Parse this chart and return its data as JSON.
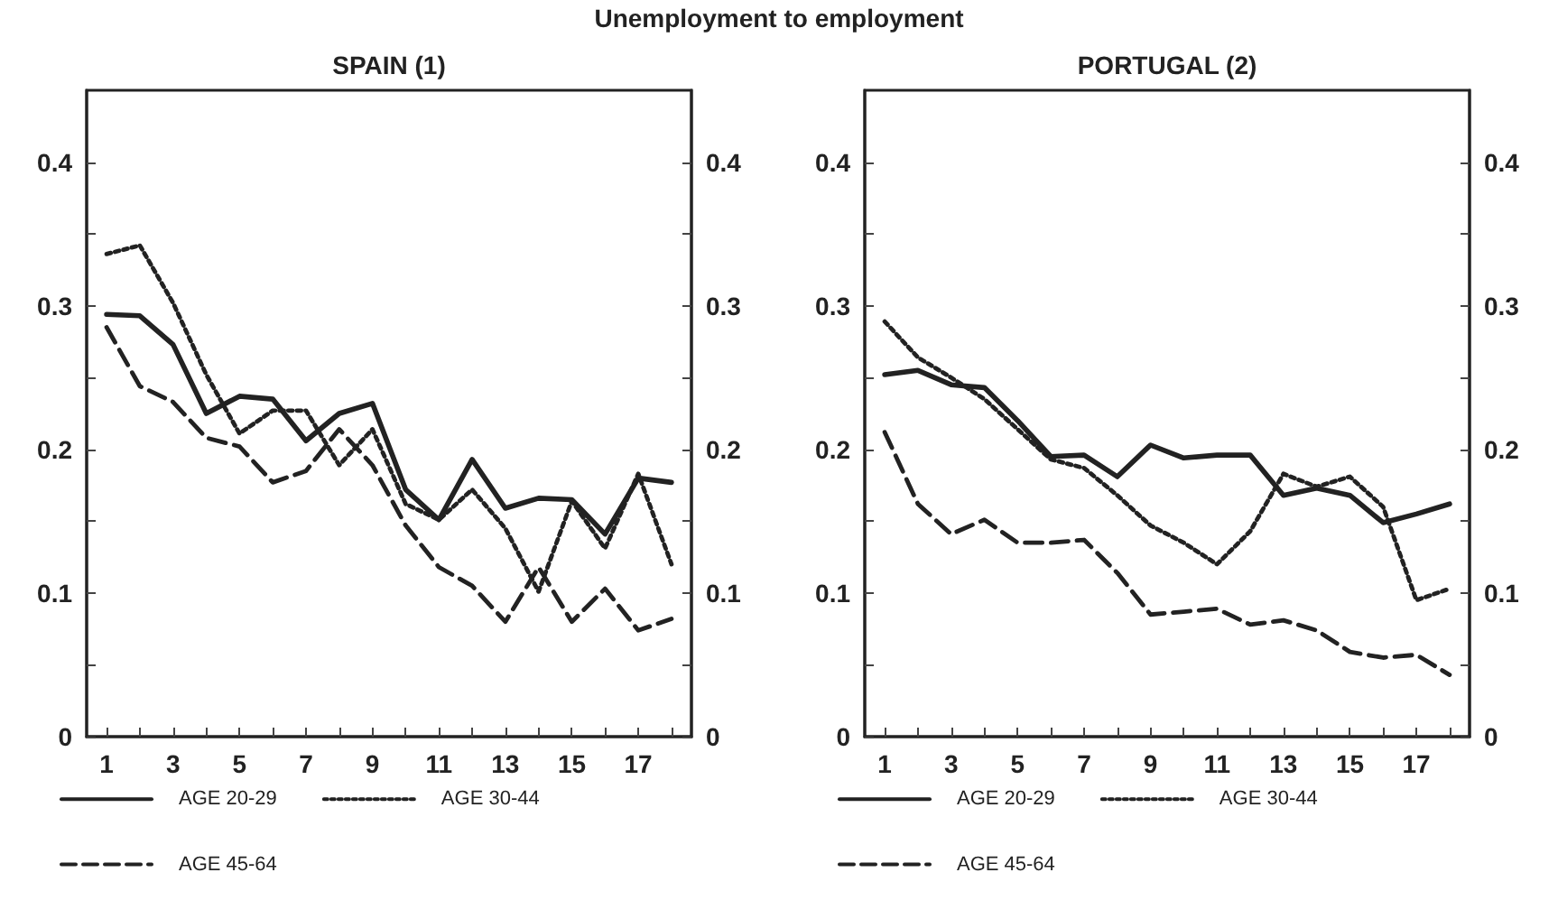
{
  "chart_data": [
    {
      "type": "line",
      "title": "SPAIN (1)",
      "annotations": [
        "Unemployment to employment"
      ],
      "x": [
        1,
        2,
        3,
        4,
        5,
        6,
        7,
        8,
        9,
        10,
        11,
        12,
        13,
        14,
        15,
        16,
        17,
        18
      ],
      "series": [
        {
          "name": "AGE 20-29",
          "color": "#222222",
          "line_style": "solid",
          "values": [
            0.294,
            0.293,
            0.273,
            0.225,
            0.237,
            0.235,
            0.206,
            0.225,
            0.232,
            0.172,
            0.151,
            0.193,
            0.159,
            0.166,
            0.165,
            0.141,
            0.18,
            0.177
          ]
        },
        {
          "name": "AGE 30-44",
          "color": "#222222",
          "line_style": "dotted",
          "values": [
            0.336,
            0.342,
            0.302,
            0.252,
            0.211,
            0.227,
            0.227,
            0.189,
            0.214,
            0.162,
            0.151,
            0.172,
            0.145,
            0.101,
            0.164,
            0.131,
            0.183,
            0.12
          ]
        },
        {
          "name": "AGE 45-64",
          "color": "#222222",
          "line_style": "dashed",
          "values": [
            0.285,
            0.244,
            0.233,
            0.208,
            0.202,
            0.177,
            0.185,
            0.214,
            0.189,
            0.147,
            0.118,
            0.105,
            0.08,
            0.118,
            0.08,
            0.103,
            0.074,
            0.082
          ]
        }
      ],
      "xlim": [
        0.4,
        18.6
      ],
      "xticks": [
        1,
        {
          "value": 2,
          "label": null
        },
        3,
        {
          "value": 4,
          "label": null
        },
        5,
        {
          "value": 6,
          "label": null
        },
        7,
        {
          "value": 8,
          "label": null
        },
        9,
        {
          "value": 10,
          "label": null
        },
        11,
        {
          "value": 12,
          "label": null
        },
        13,
        {
          "value": 14,
          "label": null
        },
        15,
        {
          "value": 16,
          "label": null
        },
        17,
        {
          "value": 18,
          "label": null
        }
      ],
      "ylim": [
        0,
        0.45
      ],
      "yticks": [
        0,
        {
          "value": 0.05,
          "label": null
        },
        0.1,
        {
          "value": 0.15,
          "label": null
        },
        0.2,
        {
          "value": 0.25,
          "label": null
        },
        0.3,
        {
          "value": 0.35,
          "label": null
        },
        0.4
      ],
      "y2lim": [
        0,
        0.45
      ],
      "y2ticks": [
        0,
        {
          "value": 0.05,
          "label": null
        },
        0.1,
        {
          "value": 0.15,
          "label": null
        },
        0.2,
        {
          "value": 0.25,
          "label": null
        },
        0.3,
        {
          "value": 0.35,
          "label": null
        },
        0.4
      ],
      "grid": false,
      "legend": "bottom",
      "marker": "none"
    },
    {
      "type": "line",
      "title": "PORTUGAL (2)",
      "x": [
        1,
        2,
        3,
        4,
        5,
        6,
        7,
        8,
        9,
        10,
        11,
        12,
        13,
        14,
        15,
        16,
        17,
        18
      ],
      "series": [
        {
          "name": "AGE 20-29",
          "color": "#222222",
          "line_style": "solid",
          "values": [
            0.252,
            0.255,
            0.245,
            0.243,
            0.22,
            0.195,
            0.196,
            0.181,
            0.203,
            0.194,
            0.196,
            0.196,
            0.168,
            0.173,
            0.168,
            0.149,
            0.155,
            0.162
          ]
        },
        {
          "name": "AGE 30-44",
          "color": "#222222",
          "line_style": "dotted",
          "values": [
            0.289,
            0.264,
            0.25,
            0.235,
            0.214,
            0.193,
            0.187,
            0.168,
            0.147,
            0.135,
            0.12,
            0.143,
            0.183,
            0.174,
            0.181,
            0.16,
            0.095,
            0.103
          ]
        },
        {
          "name": "AGE 45-64",
          "color": "#222222",
          "line_style": "dashed",
          "values": [
            0.212,
            0.162,
            0.141,
            0.151,
            0.135,
            0.135,
            0.137,
            0.114,
            0.085,
            0.087,
            0.089,
            0.078,
            0.081,
            0.074,
            0.059,
            0.055,
            0.057,
            0.043
          ]
        }
      ],
      "xlim": [
        0.4,
        18.6
      ],
      "xticks": [
        1,
        {
          "value": 2,
          "label": null
        },
        3,
        {
          "value": 4,
          "label": null
        },
        5,
        {
          "value": 6,
          "label": null
        },
        7,
        {
          "value": 8,
          "label": null
        },
        9,
        {
          "value": 10,
          "label": null
        },
        11,
        {
          "value": 12,
          "label": null
        },
        13,
        {
          "value": 14,
          "label": null
        },
        15,
        {
          "value": 16,
          "label": null
        },
        17,
        {
          "value": 18,
          "label": null
        }
      ],
      "ylim": [
        0,
        0.45
      ],
      "yticks": [
        0,
        {
          "value": 0.05,
          "label": null
        },
        0.1,
        {
          "value": 0.15,
          "label": null
        },
        0.2,
        {
          "value": 0.25,
          "label": null
        },
        0.3,
        {
          "value": 0.35,
          "label": null
        },
        0.4
      ],
      "y2lim": [
        0,
        0.45
      ],
      "y2ticks": [
        0,
        {
          "value": 0.05,
          "label": null
        },
        0.1,
        {
          "value": 0.15,
          "label": null
        },
        0.2,
        {
          "value": 0.25,
          "label": null
        },
        0.3,
        {
          "value": 0.35,
          "label": null
        },
        0.4
      ],
      "grid": false,
      "legend": "bottom",
      "marker": "none"
    }
  ]
}
